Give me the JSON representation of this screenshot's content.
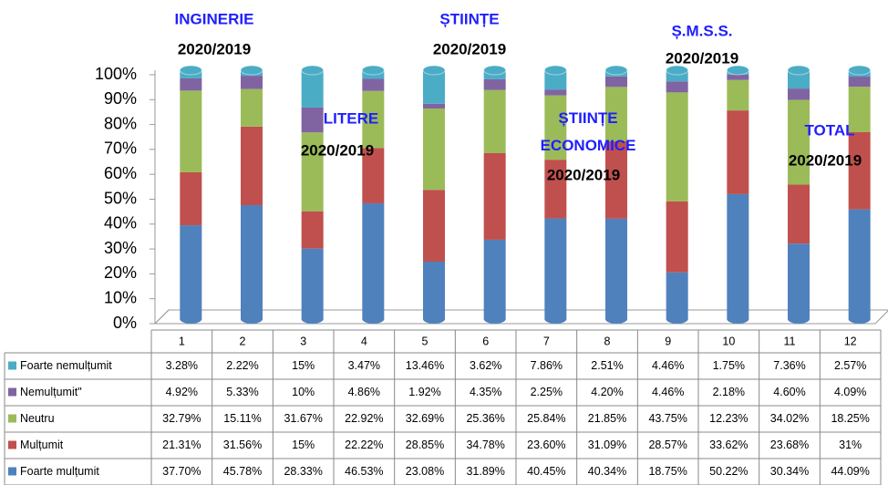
{
  "chart_data": {
    "type": "bar",
    "stacked": true,
    "categories": [
      "1",
      "2",
      "3",
      "4",
      "5",
      "6",
      "7",
      "8",
      "9",
      "10",
      "11",
      "12"
    ],
    "ylim": [
      0,
      100
    ],
    "yticks": [
      {
        "value": 0,
        "label": "0%"
      },
      {
        "value": 10,
        "label": "10%"
      },
      {
        "value": 20,
        "label": "20%"
      },
      {
        "value": 30,
        "label": "30%"
      },
      {
        "value": 40,
        "label": "40%"
      },
      {
        "value": 50,
        "label": "50%"
      },
      {
        "value": 60,
        "label": "60%"
      },
      {
        "value": 70,
        "label": "70%"
      },
      {
        "value": 80,
        "label": "80%"
      },
      {
        "value": 90,
        "label": "90%"
      },
      {
        "value": 100,
        "label": "100%"
      }
    ],
    "annotations": [
      {
        "text": "INGINERIE",
        "period": "2020/2019"
      },
      {
        "text": "LITERE",
        "period": "2020/2019"
      },
      {
        "text": "ȘTIINȚE",
        "period": "2020/2019"
      },
      {
        "text": "ȘTIINȚE ECONOMICE",
        "period": "2020/2019"
      },
      {
        "text": "Ș.M.S.S.",
        "period": "2020/2019"
      },
      {
        "text": "TOTAL",
        "period": "2020/2019"
      }
    ],
    "series": [
      {
        "name": "Foarte nemulțumit",
        "color": "#4bacc6",
        "values": [
          3.28,
          2.22,
          15,
          3.47,
          13.46,
          3.62,
          7.86,
          2.51,
          4.46,
          1.75,
          7.36,
          2.57
        ],
        "value_labels": [
          "3.28%",
          "2.22%",
          "15%",
          "3.47%",
          "13.46%",
          "3.62%",
          "7.86%",
          "2.51%",
          "4.46%",
          "1.75%",
          "7.36%",
          "2.57%"
        ]
      },
      {
        "name": "Nemulțumit\"",
        "color": "#8064a2",
        "values": [
          4.92,
          5.33,
          10,
          4.86,
          1.92,
          4.35,
          2.25,
          4.2,
          4.46,
          2.18,
          4.6,
          4.09
        ],
        "value_labels": [
          "4.92%",
          "5.33%",
          "10%",
          "4.86%",
          "1.92%",
          "4.35%",
          "2.25%",
          "4.20%",
          "4.46%",
          "2.18%",
          "4.60%",
          "4.09%"
        ]
      },
      {
        "name": "Neutru",
        "color": "#9bbb59",
        "values": [
          32.79,
          15.11,
          31.67,
          22.92,
          32.69,
          25.36,
          25.84,
          21.85,
          43.75,
          12.23,
          34.02,
          18.25
        ],
        "value_labels": [
          "32.79%",
          "15.11%",
          "31.67%",
          "22.92%",
          "32.69%",
          "25.36%",
          "25.84%",
          "21.85%",
          "43.75%",
          "12.23%",
          "34.02%",
          "18.25%"
        ]
      },
      {
        "name": "Mulțumit",
        "color": "#c0504d",
        "values": [
          21.31,
          31.56,
          15,
          22.22,
          28.85,
          34.78,
          23.6,
          31.09,
          28.57,
          33.62,
          23.68,
          31
        ],
        "value_labels": [
          "21.31%",
          "31.56%",
          "15%",
          "22.22%",
          "28.85%",
          "34.78%",
          "23.60%",
          "31.09%",
          "28.57%",
          "33.62%",
          "23.68%",
          "31%"
        ]
      },
      {
        "name": "Foarte mulțumit",
        "color": "#4f81bd",
        "values": [
          37.7,
          45.78,
          28.33,
          46.53,
          23.08,
          31.89,
          40.45,
          40.34,
          18.75,
          50.22,
          30.34,
          44.09
        ],
        "value_labels": [
          "37.70%",
          "45.78%",
          "28.33%",
          "46.53%",
          "23.08%",
          "31.89%",
          "40.45%",
          "40.34%",
          "18.75%",
          "50.22%",
          "30.34%",
          "44.09%"
        ]
      }
    ]
  }
}
